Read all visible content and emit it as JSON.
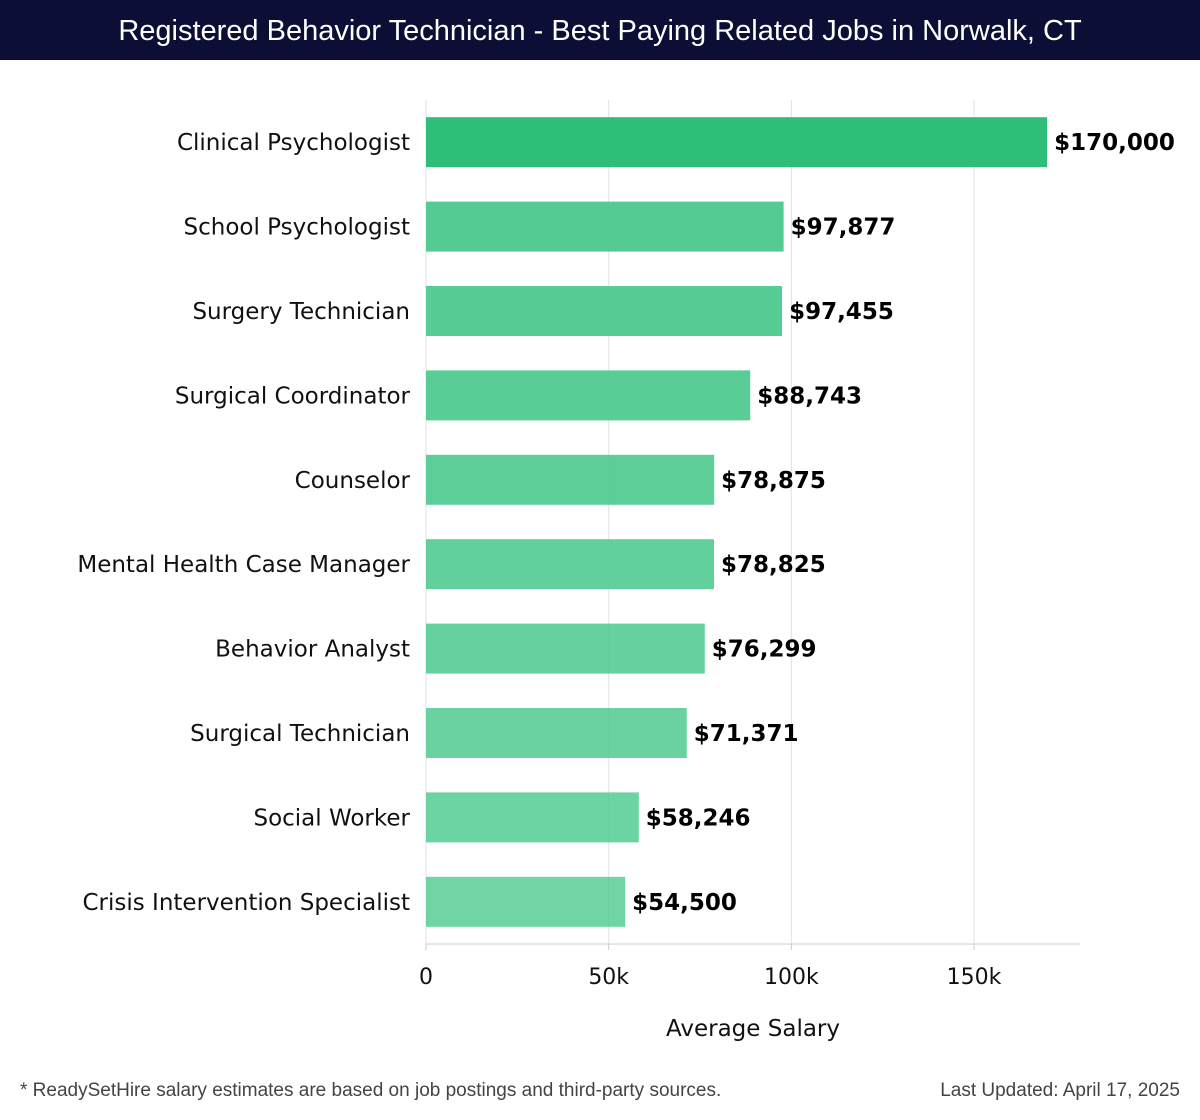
{
  "header": {
    "title": "Registered Behavior Technician - Best Paying Related Jobs in Norwalk, CT"
  },
  "footer": {
    "note": "* ReadySetHire salary estimates are based on job postings and third-party sources.",
    "updated": "Last Updated: April 17, 2025"
  },
  "chart_data": {
    "type": "bar",
    "orientation": "horizontal",
    "title": "Registered Behavior Technician - Best Paying Related Jobs in Norwalk, CT",
    "xlabel": "Average Salary",
    "ylabel": "",
    "categories": [
      "Clinical Psychologist",
      "School Psychologist",
      "Surgery Technician",
      "Surgical Coordinator",
      "Counselor",
      "Mental Health Case Manager",
      "Behavior Analyst",
      "Surgical Technician",
      "Social Worker",
      "Crisis Intervention Specialist"
    ],
    "values": [
      170000,
      97877,
      97455,
      88743,
      78875,
      78825,
      76299,
      71371,
      58246,
      54500
    ],
    "value_labels": [
      "$170,000",
      "$97,877",
      "$97,455",
      "$88,743",
      "$78,875",
      "$78,825",
      "$76,299",
      "$71,371",
      "$58,246",
      "$54,500"
    ],
    "xlim": [
      0,
      179000
    ],
    "xticks": [
      0,
      50000,
      100000,
      150000
    ],
    "xtick_labels": [
      "0",
      "50k",
      "100k",
      "150k"
    ],
    "grid": true,
    "colors": {
      "top_bar": "#2dbf77",
      "bars": "#4cc98e",
      "grid": "#e2e2e2",
      "axis": "#cccccc",
      "header_bg": "#0c0e36"
    }
  }
}
